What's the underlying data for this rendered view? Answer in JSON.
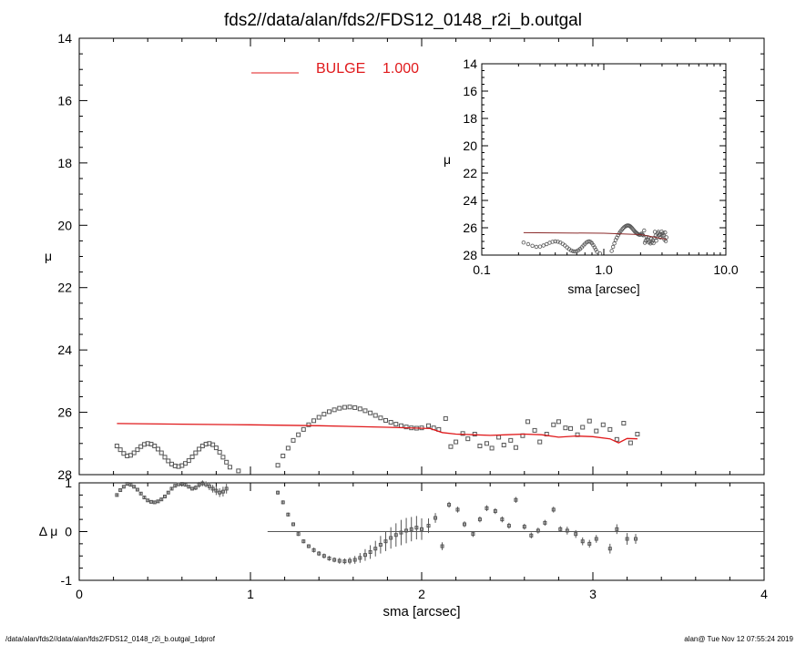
{
  "title": "fds2//data/alan/fds2/FDS12_0148_r2i_b.outgal",
  "footer_left": "/data/alan/fds2//data/alan/fds2/FDS12_0148_r2i_b.outgal_1dprof",
  "footer_right": "alan@  Tue Nov 12 07:55:24 2019",
  "colors": {
    "model": "#e0191b",
    "points": "#555555",
    "axes": "#000000"
  },
  "chart_data": [
    {
      "type": "scatter",
      "name": "main profile",
      "xlabel": "sma [arcsec]",
      "ylabel": "μ",
      "xlim": [
        0,
        4
      ],
      "ylim": [
        28,
        14
      ],
      "xticks": [
        "0",
        "1",
        "2",
        "3",
        "4"
      ],
      "yticks": [
        "14",
        "16",
        "18",
        "20",
        "22",
        "24",
        "26",
        "28"
      ],
      "legend": {
        "label": "BULGE",
        "value": "1.000",
        "placement": "top-center"
      },
      "data_x": [
        0.22,
        0.24,
        0.26,
        0.28,
        0.3,
        0.32,
        0.34,
        0.36,
        0.38,
        0.4,
        0.42,
        0.44,
        0.46,
        0.48,
        0.5,
        0.52,
        0.54,
        0.56,
        0.58,
        0.6,
        0.62,
        0.64,
        0.66,
        0.68,
        0.7,
        0.72,
        0.74,
        0.76,
        0.78,
        0.8,
        0.82,
        0.84,
        0.86,
        0.88,
        0.93,
        1.12,
        1.16,
        1.19,
        1.22,
        1.25,
        1.28,
        1.31,
        1.34,
        1.37,
        1.4,
        1.43,
        1.46,
        1.49,
        1.52,
        1.55,
        1.58,
        1.61,
        1.64,
        1.67,
        1.7,
        1.73,
        1.76,
        1.79,
        1.82,
        1.85,
        1.88,
        1.91,
        1.94,
        1.97,
        2.0,
        2.04,
        2.07,
        2.1,
        2.14,
        2.17,
        2.2,
        2.24,
        2.27,
        2.31,
        2.34,
        2.38,
        2.41,
        2.45,
        2.48,
        2.52,
        2.55,
        2.59,
        2.62,
        2.66,
        2.69,
        2.73,
        2.77,
        2.8,
        2.84,
        2.87,
        2.91,
        2.94,
        2.98,
        3.02,
        3.06,
        3.1,
        3.14,
        3.18,
        3.22,
        3.26
      ],
      "data_y": [
        27.08,
        27.2,
        27.32,
        27.4,
        27.38,
        27.3,
        27.2,
        27.1,
        27.03,
        27.0,
        27.02,
        27.08,
        27.18,
        27.3,
        27.44,
        27.56,
        27.66,
        27.72,
        27.74,
        27.71,
        27.64,
        27.55,
        27.43,
        27.3,
        27.18,
        27.08,
        27.02,
        27.0,
        27.04,
        27.14,
        27.28,
        27.44,
        27.6,
        27.76,
        27.88,
        27.95,
        27.7,
        27.4,
        27.15,
        26.9,
        26.72,
        26.55,
        26.4,
        26.27,
        26.16,
        26.06,
        25.98,
        25.92,
        25.87,
        25.84,
        25.83,
        25.85,
        25.89,
        25.95,
        26.02,
        26.1,
        26.18,
        26.26,
        26.32,
        26.38,
        26.43,
        26.47,
        26.5,
        26.51,
        26.5,
        26.43,
        26.5,
        26.55,
        26.2,
        27.1,
        26.95,
        26.68,
        26.85,
        26.7,
        27.08,
        27.0,
        27.15,
        26.8,
        27.05,
        26.9,
        27.13,
        26.75,
        26.3,
        26.58,
        26.95,
        26.7,
        26.4,
        26.3,
        26.5,
        26.52,
        26.72,
        26.48,
        26.28,
        26.6,
        26.4,
        26.55,
        26.87,
        26.35,
        26.98,
        26.7
      ],
      "model_x": [
        0.22,
        0.6,
        1.0,
        1.4,
        1.8,
        2.05,
        2.12,
        2.2,
        2.3,
        2.4,
        2.5,
        2.6,
        2.7,
        2.8,
        2.9,
        3.0,
        3.1,
        3.15,
        3.2,
        3.26
      ],
      "model_y": [
        26.36,
        26.38,
        26.4,
        26.43,
        26.48,
        26.52,
        26.65,
        26.7,
        26.72,
        26.74,
        26.72,
        26.7,
        26.72,
        26.8,
        26.76,
        26.78,
        26.85,
        26.98,
        26.84,
        26.85
      ]
    },
    {
      "type": "scatter",
      "name": "residuals",
      "xlabel": "sma [arcsec]",
      "ylabel": "Δ μ",
      "xlim": [
        0,
        4
      ],
      "ylim": [
        -1,
        1
      ],
      "yticks": [
        "-1",
        "0",
        "1"
      ],
      "zero_line_from": 1.1,
      "x": [
        0.22,
        0.24,
        0.26,
        0.28,
        0.3,
        0.32,
        0.34,
        0.36,
        0.38,
        0.4,
        0.42,
        0.44,
        0.46,
        0.48,
        0.5,
        0.52,
        0.54,
        0.56,
        0.58,
        0.6,
        0.62,
        0.64,
        0.66,
        0.68,
        0.7,
        0.72,
        0.74,
        0.76,
        0.78,
        0.8,
        0.82,
        0.84,
        0.86,
        1.16,
        1.19,
        1.22,
        1.25,
        1.28,
        1.31,
        1.34,
        1.37,
        1.4,
        1.43,
        1.46,
        1.49,
        1.52,
        1.55,
        1.58,
        1.61,
        1.64,
        1.67,
        1.7,
        1.73,
        1.76,
        1.79,
        1.82,
        1.85,
        1.88,
        1.91,
        1.94,
        1.97,
        2.0,
        2.04,
        2.08,
        2.12,
        2.16,
        2.21,
        2.25,
        2.3,
        2.34,
        2.38,
        2.43,
        2.47,
        2.51,
        2.55,
        2.6,
        2.64,
        2.68,
        2.72,
        2.77,
        2.81,
        2.85,
        2.9,
        2.94,
        2.98,
        3.02,
        3.1,
        3.14,
        3.2,
        3.25
      ],
      "y": [
        0.75,
        0.85,
        0.92,
        0.98,
        0.96,
        0.92,
        0.86,
        0.78,
        0.7,
        0.64,
        0.61,
        0.6,
        0.62,
        0.66,
        0.72,
        0.8,
        0.88,
        0.94,
        0.97,
        0.98,
        0.96,
        0.92,
        0.88,
        0.9,
        0.96,
        0.99,
        0.97,
        0.93,
        0.88,
        0.84,
        0.8,
        0.82,
        0.88,
        0.8,
        0.6,
        0.35,
        0.15,
        -0.05,
        -0.2,
        -0.3,
        -0.38,
        -0.45,
        -0.5,
        -0.55,
        -0.58,
        -0.6,
        -0.61,
        -0.6,
        -0.58,
        -0.54,
        -0.48,
        -0.42,
        -0.35,
        -0.27,
        -0.2,
        -0.13,
        -0.07,
        -0.02,
        0.02,
        0.05,
        0.08,
        0.05,
        0.12,
        0.28,
        -0.3,
        0.55,
        0.45,
        0.15,
        -0.05,
        0.25,
        0.48,
        0.42,
        0.25,
        0.12,
        0.65,
        0.1,
        -0.08,
        0.02,
        0.18,
        0.45,
        0.05,
        0.02,
        -0.05,
        -0.2,
        -0.25,
        -0.15,
        -0.35,
        0.05,
        -0.15,
        -0.15
      ],
      "err": [
        0.03,
        0.03,
        0.03,
        0.03,
        0.03,
        0.03,
        0.03,
        0.03,
        0.03,
        0.03,
        0.03,
        0.03,
        0.03,
        0.03,
        0.03,
        0.03,
        0.03,
        0.03,
        0.03,
        0.03,
        0.03,
        0.03,
        0.03,
        0.05,
        0.06,
        0.06,
        0.06,
        0.08,
        0.08,
        0.09,
        0.09,
        0.1,
        0.1,
        0.04,
        0.04,
        0.04,
        0.04,
        0.04,
        0.04,
        0.04,
        0.05,
        0.05,
        0.05,
        0.05,
        0.05,
        0.06,
        0.06,
        0.07,
        0.08,
        0.1,
        0.12,
        0.14,
        0.16,
        0.18,
        0.2,
        0.22,
        0.24,
        0.26,
        0.26,
        0.25,
        0.24,
        0.22,
        0.15,
        0.1,
        0.08,
        0.06,
        0.06,
        0.06,
        0.06,
        0.06,
        0.06,
        0.06,
        0.06,
        0.06,
        0.06,
        0.06,
        0.06,
        0.06,
        0.06,
        0.06,
        0.06,
        0.08,
        0.08,
        0.08,
        0.08,
        0.08,
        0.1,
        0.1,
        0.12,
        0.1
      ]
    },
    {
      "type": "scatter",
      "name": "inset log profile",
      "xlabel": "sma [arcsec]",
      "ylabel": "μ",
      "xscale": "log",
      "xlim": [
        0.1,
        10.0
      ],
      "ylim": [
        28,
        14
      ],
      "xticks": [
        "0.1",
        "1.0",
        "10.0"
      ],
      "yticks": [
        "14",
        "16",
        "18",
        "20",
        "22",
        "24",
        "26",
        "28"
      ],
      "model_x": [
        0.22,
        1.0,
        2.0,
        3.26
      ],
      "model_y": [
        26.36,
        26.4,
        26.5,
        26.85
      ]
    }
  ]
}
